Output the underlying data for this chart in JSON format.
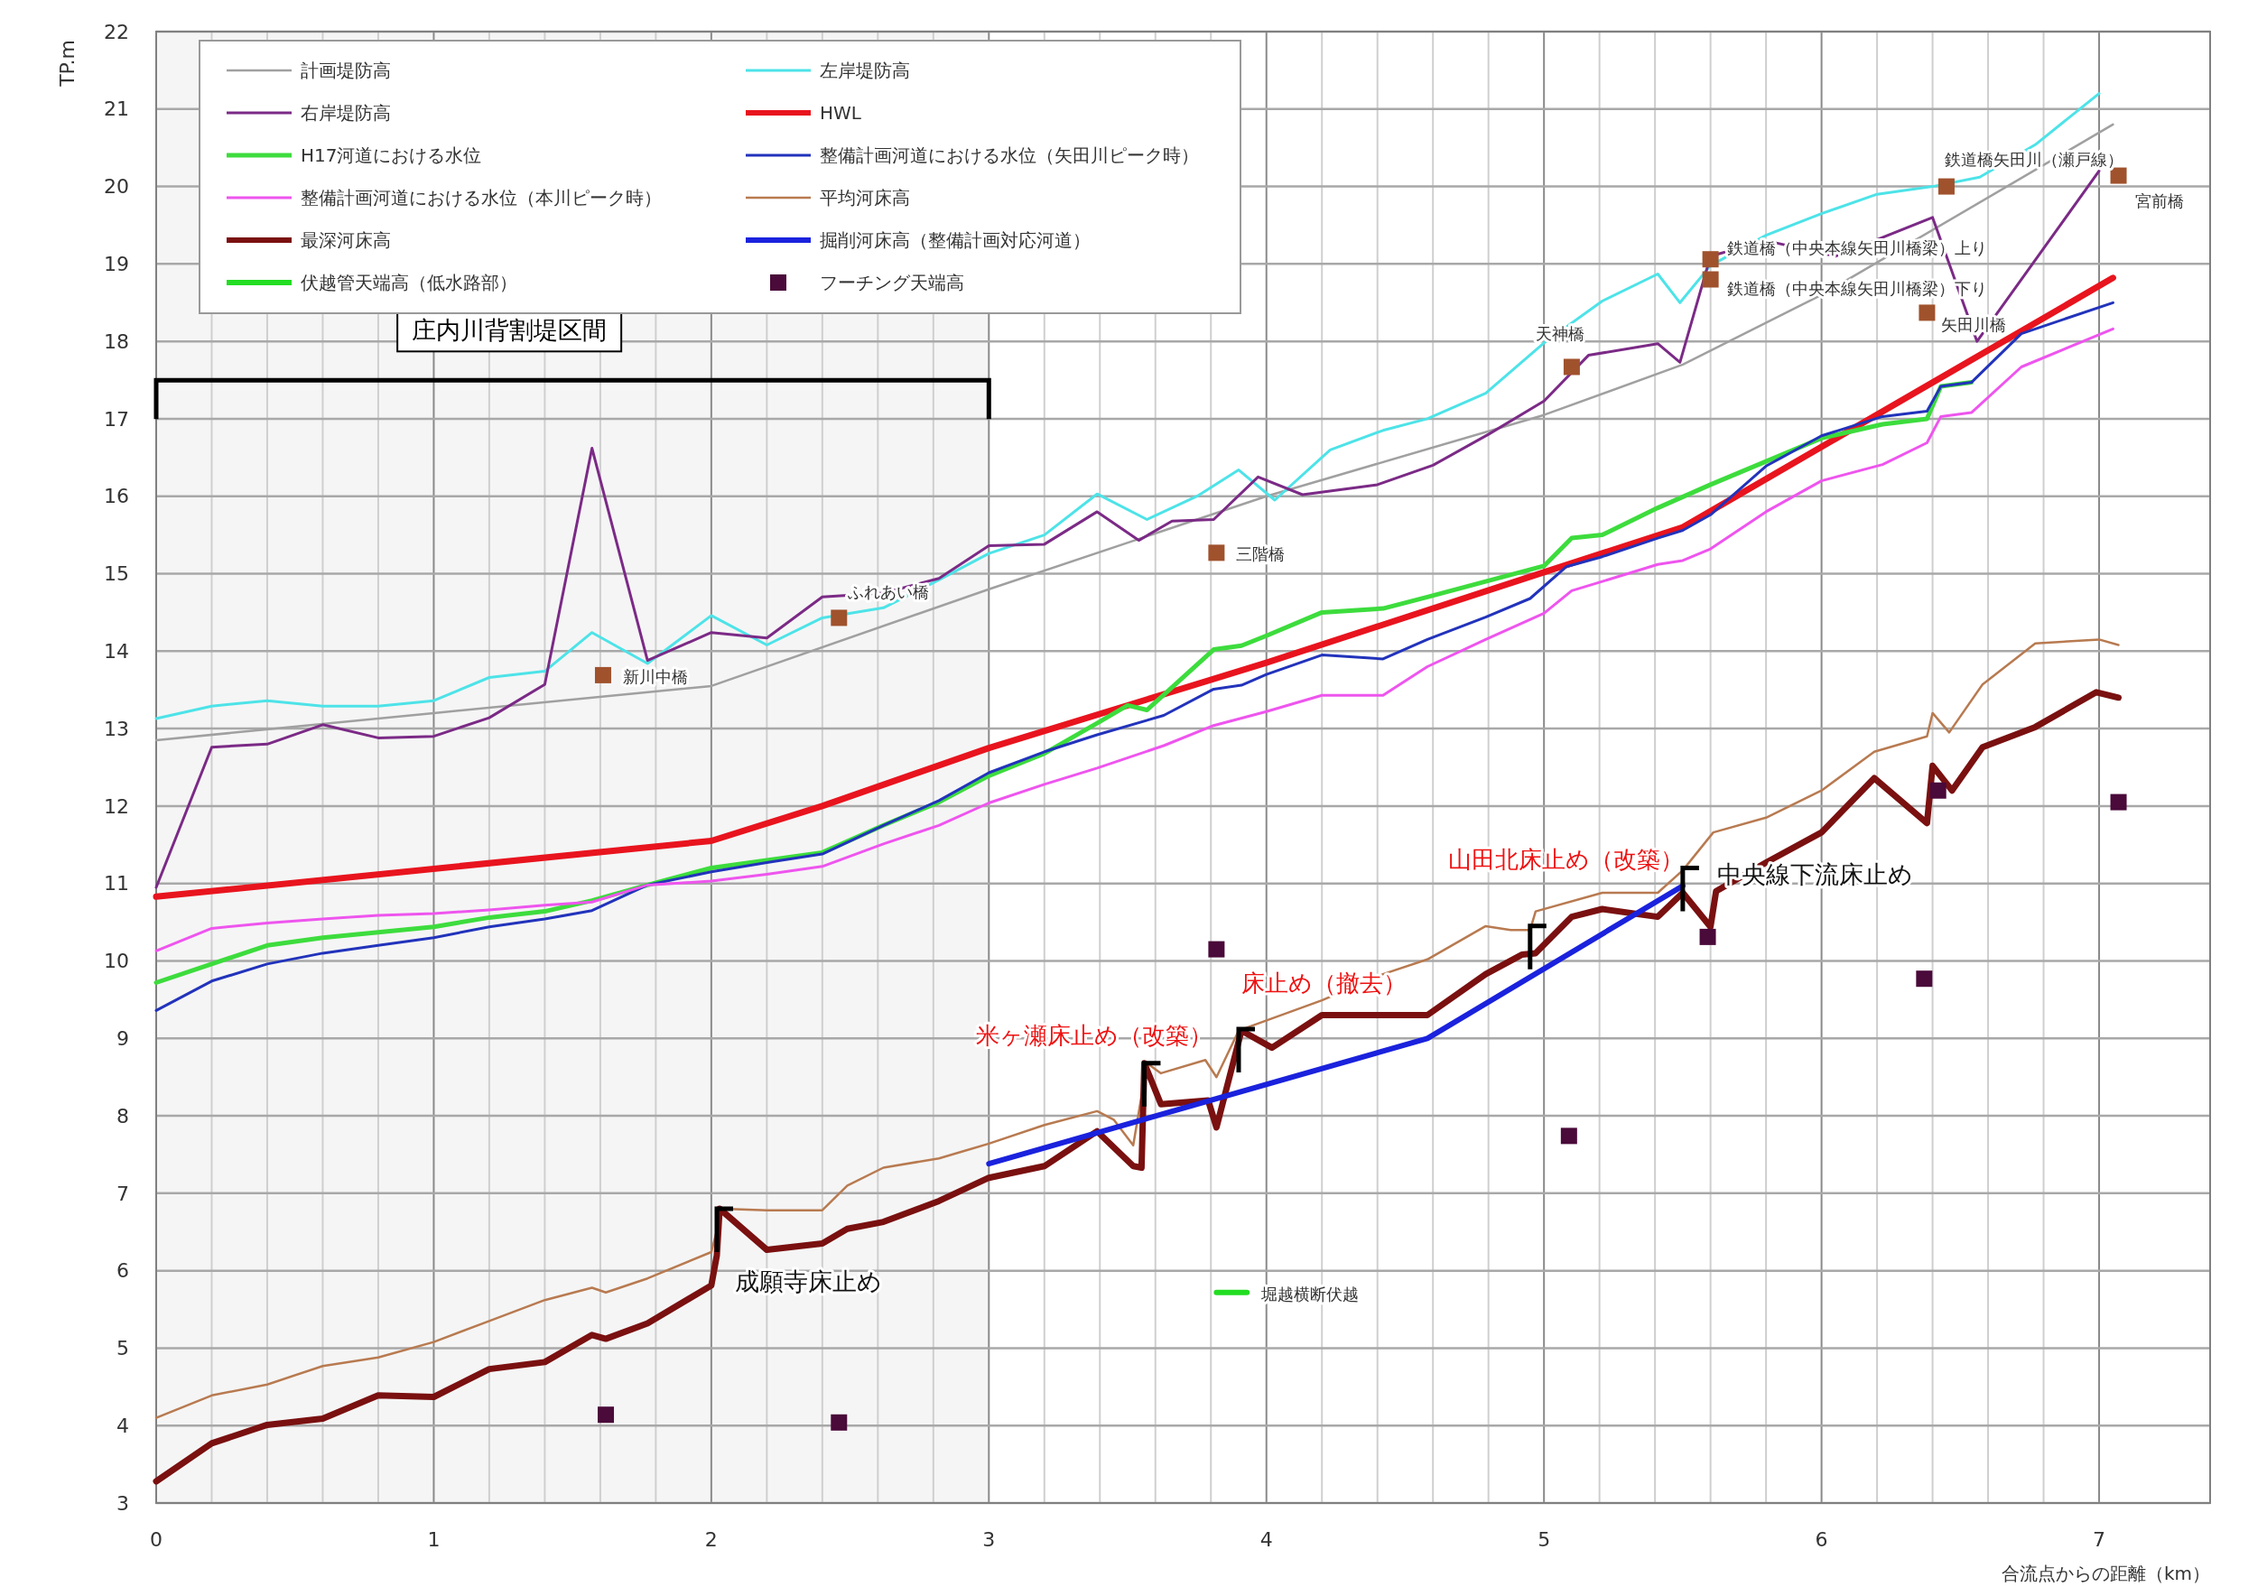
{
  "chart_data": {
    "type": "line",
    "xlabel": "合流点からの距離（km）",
    "ylabel": "TP.m",
    "xlim": [
      0,
      7.4
    ],
    "ylim": [
      3,
      22
    ],
    "xticks": [
      0,
      {
        "value": 0.2,
        "label": null
      },
      {
        "value": 0.4,
        "label": null
      },
      {
        "value": 0.6,
        "label": null
      },
      {
        "value": 0.8,
        "label": null
      },
      1,
      {
        "value": 1.2,
        "label": null
      },
      {
        "value": 1.4,
        "label": null
      },
      {
        "value": 1.6,
        "label": null
      },
      {
        "value": 1.8,
        "label": null
      },
      2,
      {
        "value": 2.2,
        "label": null
      },
      {
        "value": 2.4,
        "label": null
      },
      {
        "value": 2.6,
        "label": null
      },
      {
        "value": 2.8,
        "label": null
      },
      3,
      {
        "value": 3.2,
        "label": null
      },
      {
        "value": 3.4,
        "label": null
      },
      {
        "value": 3.6,
        "label": null
      },
      {
        "value": 3.8,
        "label": null
      },
      4,
      {
        "value": 4.2,
        "label": null
      },
      {
        "value": 4.4,
        "label": null
      },
      {
        "value": 4.6,
        "label": null
      },
      {
        "value": 4.8,
        "label": null
      },
      5,
      {
        "value": 5.2,
        "label": null
      },
      {
        "value": 5.4,
        "label": null
      },
      {
        "value": 5.6,
        "label": null
      },
      {
        "value": 5.8,
        "label": null
      },
      6,
      {
        "value": 6.2,
        "label": null
      },
      {
        "value": 6.4,
        "label": null
      },
      {
        "value": 6.6,
        "label": null
      },
      {
        "value": 6.8,
        "label": null
      },
      7
    ],
    "yticks": [
      3,
      4,
      5,
      6,
      7,
      8,
      9,
      10,
      11,
      12,
      13,
      14,
      15,
      16,
      17,
      18,
      19,
      20,
      21,
      22
    ],
    "grid": true,
    "legend": "top left",
    "series": [
      {
        "name": "計画堤防高",
        "type": "line",
        "color": "#a0a0a0",
        "x": [
          0,
          1,
          2,
          3,
          4,
          5,
          5.5,
          6,
          7.05
        ],
        "values": [
          12.85,
          13.2,
          13.55,
          14.8,
          16.0,
          17.05,
          17.7,
          18.6,
          20.8
        ]
      },
      {
        "name": "左岸堤防高",
        "type": "line",
        "color": "#4de3e8",
        "x": [
          0,
          0.2,
          0.4,
          0.6,
          0.8,
          1.0,
          1.2,
          1.4,
          1.57,
          1.77,
          2.0,
          2.2,
          2.4,
          2.62,
          2.82,
          3.0,
          3.2,
          3.39,
          3.57,
          3.75,
          3.9,
          4.03,
          4.23,
          4.42,
          4.58,
          4.79,
          5.0,
          5.21,
          5.41,
          5.49,
          5.6,
          5.8,
          6.0,
          6.2,
          6.4,
          6.57,
          6.77,
          7.0
        ],
        "values": [
          13.13,
          13.29,
          13.36,
          13.29,
          13.29,
          13.36,
          13.66,
          13.74,
          14.24,
          13.84,
          14.46,
          14.08,
          14.43,
          14.56,
          14.92,
          15.26,
          15.5,
          16.03,
          15.7,
          16.0,
          16.34,
          15.95,
          16.6,
          16.85,
          17.0,
          17.33,
          17.98,
          18.52,
          18.87,
          18.5,
          18.98,
          19.37,
          19.65,
          19.9,
          20.0,
          20.12,
          20.54,
          21.2
        ]
      },
      {
        "name": "右岸堤防高",
        "type": "line",
        "color": "#7b2a86",
        "x": [
          0,
          0.2,
          0.4,
          0.6,
          0.8,
          1.0,
          1.2,
          1.4,
          1.57,
          1.77,
          2.0,
          2.2,
          2.4,
          2.62,
          2.82,
          3.0,
          3.2,
          3.39,
          3.54,
          3.66,
          3.81,
          3.97,
          4.13,
          4.4,
          4.6,
          4.8,
          5.0,
          5.16,
          5.41,
          5.49,
          5.6,
          5.8,
          6.05,
          6.4,
          6.56,
          7.0
        ],
        "values": [
          10.95,
          12.76,
          12.8,
          13.05,
          12.88,
          12.9,
          13.14,
          13.57,
          16.62,
          13.88,
          14.24,
          14.17,
          14.7,
          14.75,
          14.94,
          15.36,
          15.38,
          15.8,
          15.43,
          15.68,
          15.7,
          16.25,
          16.02,
          16.15,
          16.4,
          16.8,
          17.23,
          17.82,
          17.97,
          17.73,
          19.1,
          19.3,
          19.1,
          19.6,
          18.0,
          20.2
        ]
      },
      {
        "name": "HWL",
        "type": "line",
        "color": "#e8141e",
        "x": [
          0,
          2,
          2.4,
          3,
          4,
          5,
          5.5,
          7.05
        ],
        "values": [
          10.83,
          11.55,
          12.0,
          12.75,
          13.85,
          15.02,
          15.6,
          18.82
        ]
      },
      {
        "name": "H17河道における水位",
        "type": "line",
        "color": "#3ddc3d",
        "x": [
          0,
          0.2,
          0.4,
          0.6,
          0.8,
          1.0,
          1.2,
          1.4,
          1.57,
          1.77,
          2.0,
          2.2,
          2.4,
          2.62,
          2.82,
          3.0,
          3.2,
          3.39,
          3.5,
          3.57,
          3.81,
          3.91,
          4.0,
          4.2,
          4.42,
          4.58,
          4.79,
          5.0,
          5.1,
          5.21,
          5.41,
          5.6,
          5.8,
          6.0,
          6.22,
          6.38,
          6.43,
          6.54
        ],
        "values": [
          9.72,
          9.96,
          10.2,
          10.3,
          10.37,
          10.44,
          10.56,
          10.64,
          10.78,
          10.98,
          11.2,
          11.3,
          11.4,
          11.75,
          12.05,
          12.39,
          12.68,
          13.07,
          13.3,
          13.24,
          14.02,
          14.07,
          14.2,
          14.5,
          14.55,
          14.7,
          14.9,
          15.1,
          15.46,
          15.5,
          15.85,
          16.15,
          16.45,
          16.75,
          16.93,
          17.0,
          17.42,
          17.47
        ]
      },
      {
        "name": "整備計画河道における水位（矢田川ピーク時）",
        "type": "line",
        "color": "#2233bb",
        "x": [
          0,
          0.2,
          0.4,
          0.6,
          0.8,
          1.0,
          1.2,
          1.4,
          1.57,
          1.77,
          2.0,
          2.2,
          2.4,
          2.62,
          2.82,
          3.0,
          3.2,
          3.39,
          3.63,
          3.81,
          3.91,
          4.0,
          4.2,
          4.42,
          4.58,
          4.79,
          4.95,
          5.08,
          5.21,
          5.41,
          5.5,
          5.6,
          5.8,
          6.0,
          6.22,
          6.38,
          6.43,
          6.54,
          6.72,
          7.05
        ],
        "values": [
          9.36,
          9.74,
          9.96,
          10.1,
          10.2,
          10.3,
          10.44,
          10.54,
          10.65,
          10.98,
          11.15,
          11.27,
          11.38,
          11.75,
          12.07,
          12.43,
          12.7,
          12.92,
          13.17,
          13.51,
          13.56,
          13.7,
          13.95,
          13.9,
          14.15,
          14.44,
          14.68,
          15.09,
          15.22,
          15.46,
          15.56,
          15.76,
          16.39,
          16.78,
          17.03,
          17.1,
          17.42,
          17.47,
          18.1,
          18.5
        ]
      },
      {
        "name": "整備計画河道における水位（本川ピーク時）",
        "type": "line",
        "color": "#ee55ee",
        "x": [
          0,
          0.2,
          0.4,
          0.6,
          0.8,
          1.0,
          1.2,
          1.4,
          1.57,
          1.77,
          2.0,
          2.2,
          2.4,
          2.62,
          2.82,
          3.0,
          3.2,
          3.39,
          3.63,
          3.81,
          4.0,
          4.2,
          4.42,
          4.58,
          4.79,
          5.0,
          5.1,
          5.21,
          5.41,
          5.5,
          5.6,
          5.8,
          6.0,
          6.22,
          6.38,
          6.43,
          6.54,
          6.72,
          7.05
        ],
        "values": [
          10.13,
          10.42,
          10.49,
          10.54,
          10.59,
          10.61,
          10.66,
          10.72,
          10.76,
          10.98,
          11.03,
          11.12,
          11.22,
          11.51,
          11.75,
          12.04,
          12.28,
          12.49,
          12.78,
          13.04,
          13.22,
          13.43,
          13.43,
          13.8,
          14.15,
          14.49,
          14.78,
          14.9,
          15.12,
          15.17,
          15.32,
          15.8,
          16.2,
          16.41,
          16.69,
          17.03,
          17.08,
          17.67,
          18.16
        ]
      },
      {
        "name": "平均河床高",
        "type": "line",
        "color": "#b87a50",
        "x": [
          0,
          0.2,
          0.4,
          0.6,
          0.8,
          1.0,
          1.2,
          1.4,
          1.57,
          1.62,
          1.77,
          2.0,
          2.04,
          2.2,
          2.4,
          2.49,
          2.62,
          2.82,
          3.0,
          3.2,
          3.39,
          3.45,
          3.52,
          3.57,
          3.62,
          3.78,
          3.82,
          3.9,
          4.2,
          4.42,
          4.58,
          4.79,
          4.88,
          4.95,
          4.97,
          5.21,
          5.41,
          5.5,
          5.61,
          5.8,
          6.0,
          6.19,
          6.38,
          6.4,
          6.46,
          6.58,
          6.77,
          7.0,
          7.07
        ],
        "values": [
          4.1,
          4.39,
          4.53,
          4.77,
          4.88,
          5.08,
          5.35,
          5.62,
          5.78,
          5.72,
          5.9,
          6.24,
          6.8,
          6.78,
          6.78,
          7.1,
          7.33,
          7.45,
          7.64,
          7.88,
          8.06,
          7.95,
          7.62,
          8.68,
          8.55,
          8.72,
          8.5,
          9.1,
          9.49,
          9.83,
          10.02,
          10.45,
          10.4,
          10.4,
          10.64,
          10.88,
          10.88,
          11.17,
          11.66,
          11.85,
          12.2,
          12.7,
          12.9,
          13.2,
          12.95,
          13.57,
          14.1,
          14.15,
          14.08
        ]
      },
      {
        "name": "最深河床高",
        "type": "line",
        "color": "#7a1010",
        "x": [
          0,
          0.2,
          0.4,
          0.6,
          0.8,
          1.0,
          1.2,
          1.4,
          1.57,
          1.62,
          1.77,
          2.0,
          2.02,
          2.03,
          2.2,
          2.4,
          2.49,
          2.62,
          2.82,
          3.0,
          3.2,
          3.39,
          3.52,
          3.55,
          3.56,
          3.62,
          3.79,
          3.82,
          3.91,
          4.02,
          4.2,
          4.42,
          4.58,
          4.79,
          4.92,
          4.97,
          5.1,
          5.21,
          5.41,
          5.5,
          5.6,
          5.62,
          5.8,
          6.0,
          6.19,
          6.38,
          6.4,
          6.47,
          6.58,
          6.77,
          6.99,
          7.07
        ],
        "values": [
          3.28,
          3.77,
          4.01,
          4.09,
          4.39,
          4.37,
          4.73,
          4.82,
          5.17,
          5.12,
          5.32,
          5.81,
          6.2,
          6.8,
          6.27,
          6.35,
          6.54,
          6.63,
          6.9,
          7.2,
          7.35,
          7.8,
          7.35,
          7.33,
          8.68,
          8.15,
          8.2,
          7.85,
          9.1,
          8.88,
          9.3,
          9.3,
          9.3,
          9.83,
          10.08,
          10.1,
          10.57,
          10.67,
          10.57,
          10.88,
          10.44,
          10.9,
          11.27,
          11.66,
          12.36,
          11.78,
          12.52,
          12.2,
          12.76,
          13.02,
          13.47,
          13.4
        ]
      },
      {
        "name": "掘削河床高（整備計画対応河道）",
        "type": "line",
        "color": "#1a22dd",
        "x": [
          3,
          4.58,
          5.5
        ],
        "values": [
          7.38,
          9.0,
          10.97
        ]
      },
      {
        "name": "伏越管天端高（低水路部）",
        "type": "line",
        "color": "#22dd22",
        "x": [
          3.82,
          3.93
        ],
        "values": [
          5.72,
          5.72
        ]
      },
      {
        "type": "scatter",
        "marker": "square",
        "color": "#a0522d",
        "x": [
          1.61,
          2.46,
          3.82,
          5.1,
          5.6,
          5.6,
          6.45,
          6.38,
          7.07
        ],
        "values": [
          13.69,
          14.43,
          15.27,
          17.67,
          19.06,
          18.8,
          20.0,
          18.37,
          20.14
        ]
      },
      {
        "name": "フーチング天端高",
        "type": "scatter",
        "marker": "square",
        "color": "#4a0a3a",
        "x": [
          1.62,
          2.46,
          3.82,
          5.09,
          5.59,
          6.37,
          6.42,
          7.07
        ],
        "values": [
          4.14,
          4.04,
          10.15,
          7.74,
          10.31,
          9.77,
          12.2,
          12.05
        ]
      }
    ],
    "annotations": [
      {
        "text": "新川中橋",
        "x": 1.61,
        "y": 13.69
      },
      {
        "text": "ふれあい橋",
        "x": 2.46,
        "y": 14.43
      },
      {
        "text": "三階橋",
        "x": 3.82,
        "y": 15.27
      },
      {
        "text": "天神橋",
        "x": 5.1,
        "y": 17.67
      },
      {
        "text": "鉄道橋（中央本線矢田川橋梁）上り",
        "x": 5.6,
        "y": 19.06
      },
      {
        "text": "鉄道橋（中央本線矢田川橋梁）下り",
        "x": 5.6,
        "y": 18.8
      },
      {
        "text": "鉄道橋矢田川（瀬戸線）",
        "x": 6.45,
        "y": 20.0
      },
      {
        "text": "矢田川橋",
        "x": 6.38,
        "y": 18.37
      },
      {
        "text": "宮前橋",
        "x": 7.07,
        "y": 20.14
      },
      {
        "text": "成願寺床止め",
        "x": 2.02,
        "y": 6.8
      },
      {
        "text": "米ヶ瀬床止め（改築）",
        "x": 3.56,
        "y": 8.68
      },
      {
        "text": "床止め（撤去）",
        "x": 3.9,
        "y": 9.12
      },
      {
        "text": "山田北床止め（改築）",
        "x": 4.95,
        "y": 10.45
      },
      {
        "text": "中央線下流床止め",
        "x": 5.5,
        "y": 11.2
      },
      {
        "text": "堀越横断伏越"
      }
    ],
    "bands": [
      {
        "axis": "x",
        "from": 0,
        "to": 3,
        "label": "庄内川背割堤区間"
      }
    ]
  }
}
